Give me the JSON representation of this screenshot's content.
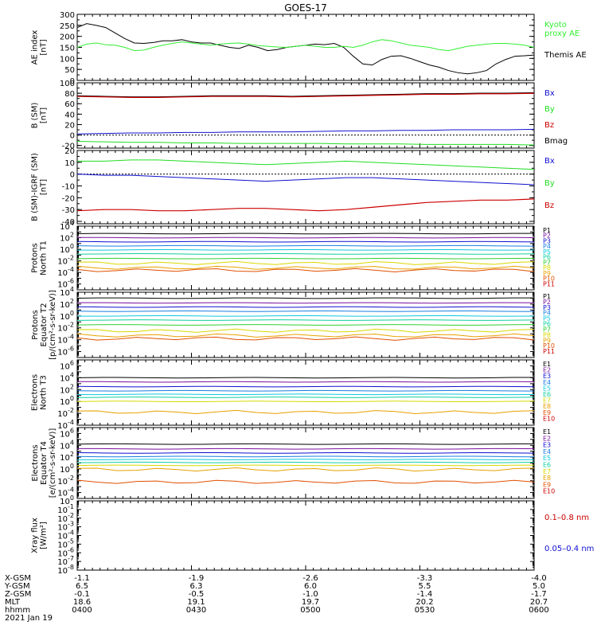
{
  "title": "GOES-17",
  "colors": {
    "black": "#000000",
    "green": "#22dd22",
    "blue": "#1010d0",
    "red": "#cc0000",
    "ae_kyoto": "#33ee33",
    "ae_themis": "#000000",
    "p_colors": [
      "#000000",
      "#7a0f9e",
      "#1010d0",
      "#1a7fe0",
      "#10c8e0",
      "#10d0a0",
      "#30d030",
      "#d8d800",
      "#e8a000",
      "#e05000",
      "#cc0000"
    ],
    "e_colors": [
      "#000000",
      "#7a0f9e",
      "#1010d0",
      "#1a7fe0",
      "#10c8e0",
      "#10d0a0",
      "#d8d800",
      "#e8a000",
      "#e05000",
      "#cc0000"
    ]
  },
  "chart_data": [
    {
      "type": "line",
      "panel": "ae",
      "ylabel_lines": [
        "AE index",
        "[nT]"
      ],
      "ylim": [
        0,
        300
      ],
      "yticks": [
        "0",
        "50",
        "100",
        "150",
        "200",
        "250",
        "300"
      ],
      "ytick_values": [
        0,
        50,
        100,
        150,
        200,
        250,
        300
      ],
      "legend": [
        {
          "name_lines": [
            "Kyoto",
            "proxy AE"
          ],
          "color": "ae_kyoto"
        },
        {
          "name_lines": [
            "Themis AE"
          ],
          "color": "ae_themis"
        }
      ],
      "series": [
        {
          "name": "Themis AE",
          "color": "ae_themis",
          "y": [
            240,
            258,
            250,
            240,
            215,
            190,
            170,
            168,
            172,
            180,
            180,
            185,
            175,
            170,
            170,
            160,
            150,
            145,
            160,
            150,
            135,
            140,
            150,
            155,
            160,
            165,
            162,
            168,
            150,
            110,
            75,
            70,
            95,
            110,
            112,
            100,
            85,
            70,
            60,
            45,
            35,
            30,
            35,
            45,
            75,
            95,
            110,
            112,
            115
          ]
        },
        {
          "name": "Kyoto proxy AE",
          "color": "ae_kyoto",
          "y": [
            150,
            165,
            170,
            162,
            160,
            150,
            135,
            138,
            150,
            160,
            168,
            175,
            170,
            165,
            160,
            165,
            168,
            170,
            165,
            158,
            155,
            152,
            150,
            155,
            160,
            155,
            150,
            150,
            155,
            150,
            160,
            175,
            185,
            180,
            170,
            160,
            155,
            150,
            140,
            135,
            145,
            155,
            160,
            165,
            168,
            168,
            165,
            160,
            150
          ]
        }
      ]
    },
    {
      "type": "line",
      "panel": "b",
      "ylabel_lines": [
        "B (SM)",
        "[nT]"
      ],
      "ylim": [
        -25,
        100
      ],
      "yticks": [
        "-20",
        "0",
        "20",
        "40",
        "60",
        "80",
        "100"
      ],
      "ytick_values": [
        -20,
        0,
        20,
        40,
        60,
        80,
        100
      ],
      "zero_line": true,
      "legend": [
        {
          "name": "Bx",
          "color": "blue"
        },
        {
          "name": "By",
          "color": "green"
        },
        {
          "name": "Bz",
          "color": "red"
        },
        {
          "name": "Bmag",
          "color": "black"
        }
      ],
      "series": [
        {
          "name": "Bmag",
          "color": "black",
          "y": [
            75,
            74,
            73,
            73,
            74,
            75,
            75,
            75,
            74,
            75,
            76,
            77,
            78,
            79,
            79,
            80,
            80,
            81
          ]
        },
        {
          "name": "Bz",
          "color": "red",
          "y": [
            74,
            73,
            72,
            72,
            73,
            74,
            74,
            74,
            73,
            74,
            75,
            76,
            77,
            78,
            78,
            79,
            79,
            80
          ]
        },
        {
          "name": "Bx",
          "color": "blue",
          "y": [
            2,
            3,
            4,
            4,
            5,
            5,
            6,
            6,
            6,
            7,
            8,
            8,
            9,
            9,
            10,
            10,
            10,
            11
          ]
        },
        {
          "name": "By",
          "color": "green",
          "y": [
            -12,
            -13,
            -14,
            -14,
            -15,
            -15,
            -16,
            -16,
            -16,
            -16,
            -17,
            -17,
            -17,
            -18,
            -18,
            -18,
            -18,
            -19
          ]
        }
      ]
    },
    {
      "type": "line",
      "panel": "dB",
      "ylabel_lines": [
        "B (SM)-IGRF (SM)",
        "[nT]"
      ],
      "ylim": [
        -42,
        20
      ],
      "yticks": [
        "-40",
        "-30",
        "-20",
        "-10",
        "0",
        "10",
        "20"
      ],
      "ytick_values": [
        -40,
        -30,
        -20,
        -10,
        0,
        10,
        20
      ],
      "zero_line": true,
      "legend": [
        {
          "name": "Bx",
          "color": "blue"
        },
        {
          "name": "By",
          "color": "green"
        },
        {
          "name": "Bz",
          "color": "red"
        }
      ],
      "series": [
        {
          "name": "By",
          "color": "green",
          "y": [
            11,
            11,
            12,
            12,
            11,
            10,
            9,
            8,
            9,
            10,
            11,
            10,
            9,
            8,
            7,
            6,
            5,
            4
          ]
        },
        {
          "name": "Bx",
          "color": "blue",
          "y": [
            0,
            -1,
            -1,
            -2,
            -3,
            -4,
            -5,
            -6,
            -5,
            -4,
            -3,
            -3,
            -4,
            -5,
            -6,
            -7,
            -8,
            -9
          ]
        },
        {
          "name": "Bz",
          "color": "red",
          "y": [
            -31,
            -30,
            -30,
            -31,
            -31,
            -30,
            -29,
            -29,
            -30,
            -31,
            -30,
            -28,
            -26,
            -24,
            -23,
            -22,
            -22,
            -21
          ]
        }
      ]
    },
    {
      "type": "line",
      "panel": "prot_t1",
      "ylabel_lines": [
        "Protons",
        "North T1"
      ],
      "log_range": [
        -7,
        4
      ],
      "ytick_exps": [
        4,
        2,
        0,
        -2,
        -4,
        -6
      ],
      "legend": [
        "P1",
        "P2",
        "P3",
        "P4",
        "P5",
        "P6",
        "P7",
        "P8",
        "P9",
        "P10",
        "P11"
      ],
      "series_log": [
        2.7,
        2.0,
        1.3,
        0.6,
        -0.1,
        -0.8,
        -1.6,
        -2.4,
        -3.2,
        -3.6
      ]
    },
    {
      "type": "line",
      "panel": "prot_t2",
      "ylabel_lines": [
        "Protons",
        "Equator T2",
        "[p/(cm²-s-sr-keV)]"
      ],
      "log_range": [
        -7,
        4
      ],
      "ytick_exps": [
        4,
        2,
        0,
        -2,
        -4,
        -6
      ],
      "legend": [
        "P1",
        "P2",
        "P3",
        "P4",
        "P5",
        "P6",
        "P7",
        "P8",
        "P9",
        "P10",
        "P11"
      ],
      "series_log": [
        3.0,
        2.2,
        1.5,
        0.8,
        0.0,
        -0.7,
        -1.5,
        -2.5,
        -3.3,
        -3.8
      ]
    },
    {
      "type": "line",
      "panel": "elec_t3",
      "ylabel_lines": [
        "Electrons",
        "North T3"
      ],
      "log_range": [
        -4,
        7
      ],
      "ytick_exps": [
        6,
        4,
        2,
        0,
        -2,
        -4
      ],
      "legend": [
        "E1",
        "E2",
        "E3",
        "E4",
        "E5",
        "E6",
        "E7",
        "E8",
        "E9",
        "E10"
      ],
      "series_log": [
        4.0,
        3.3,
        2.5,
        1.8,
        1.2,
        0.7,
        0.0,
        -1.8
      ]
    },
    {
      "type": "line",
      "panel": "elec_t4",
      "ylabel_lines": [
        "Electrons",
        "Equator T4",
        "[e/(cm²-s-sr-keV)]"
      ],
      "log_range": [
        -5,
        7
      ],
      "ytick_exps": [
        6,
        4,
        2,
        0,
        -2,
        -4
      ],
      "legend": [
        "E1",
        "E2",
        "E3",
        "E4",
        "E5",
        "E6",
        "E7",
        "E8",
        "E9",
        "E10"
      ],
      "series_log": [
        4.2,
        3.4,
        2.7,
        2.1,
        1.6,
        1.1,
        0.6,
        -0.1,
        -2.2
      ]
    },
    {
      "type": "line",
      "panel": "xray",
      "ylabel_lines": [
        "Xray flux",
        "[W/m²]"
      ],
      "log_range": [
        -8,
        0
      ],
      "ytick_exps": [
        0,
        -1,
        -2,
        -3,
        -4,
        -5,
        -6,
        -7,
        -8
      ],
      "legend": [
        {
          "name": "0.1–0.8 nm",
          "color": "red"
        },
        {
          "name": "0.05–0.4 nm",
          "color": "blue"
        }
      ],
      "series": []
    }
  ],
  "x_axis": {
    "ticks": [
      "0400",
      "0430",
      "0500",
      "0530",
      "0600"
    ],
    "rows": [
      {
        "label": "X-GSM",
        "values": [
          "-1.1",
          "-1.9",
          "-2.6",
          "-3.3",
          "-4.0"
        ]
      },
      {
        "label": "Y-GSM",
        "values": [
          "6.5",
          "6.3",
          "6.0",
          "5.5",
          "5.0"
        ]
      },
      {
        "label": "Z-GSM",
        "values": [
          "-0.1",
          "-0.5",
          "-1.0",
          "-1.4",
          "-1.7"
        ]
      },
      {
        "label": "MLT",
        "values": [
          "18.6",
          "19.1",
          "19.7",
          "20.2",
          "20.7"
        ]
      },
      {
        "label": "hhmm",
        "values": [
          "0400",
          "0430",
          "0500",
          "0530",
          "0600"
        ]
      }
    ],
    "date": "2021 Jan 19"
  }
}
